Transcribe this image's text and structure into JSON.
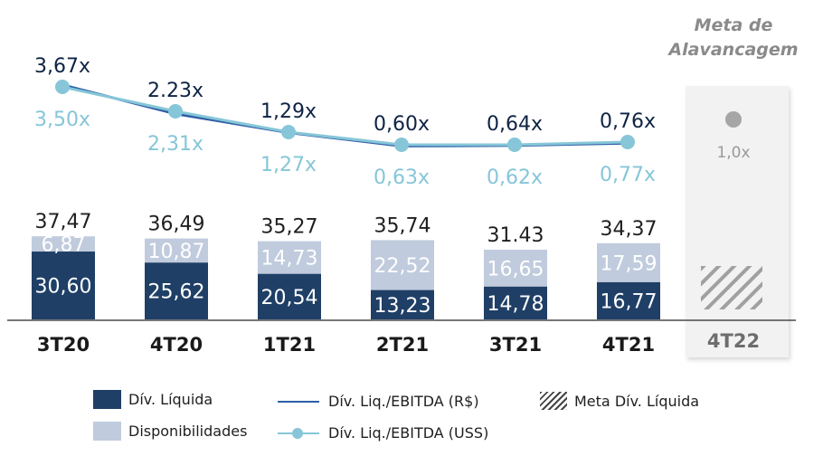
{
  "chart_data": {
    "type": "bar",
    "subtype": "stacked-bar-with-lines",
    "categories": [
      "3T20",
      "4T20",
      "1T21",
      "2T21",
      "3T21",
      "4T21"
    ],
    "series": [
      {
        "name": "Dív. Líquida",
        "kind": "bar",
        "values": [
          30.6,
          25.62,
          20.54,
          13.23,
          14.78,
          16.77
        ],
        "labels": [
          "30,60",
          "25,62",
          "20,54",
          "13,23",
          "14,78",
          "16,77"
        ],
        "color": "#1f3f66"
      },
      {
        "name": "Disponibilidades",
        "kind": "bar",
        "values": [
          6.87,
          10.87,
          14.73,
          22.52,
          16.65,
          17.59
        ],
        "labels": [
          "6,87",
          "10,87",
          "14,73",
          "22,52",
          "16,65",
          "17,59"
        ],
        "color": "#c0cbdd"
      },
      {
        "name": "Dív. Liq./EBITDA (R$)",
        "kind": "line",
        "values": [
          3.67,
          2.23,
          1.29,
          0.6,
          0.64,
          0.76
        ],
        "labels": [
          "3,67x",
          "2.23x",
          "1,29x",
          "0,60x",
          "0,64x",
          "0,76x"
        ],
        "color": "#2f5fa6"
      },
      {
        "name": "Dív. Liq./EBITDA (USS)",
        "kind": "line-marker",
        "values": [
          3.5,
          2.31,
          1.27,
          0.63,
          0.62,
          0.77
        ],
        "labels": [
          "3,50x",
          "2,31x",
          "1,27x",
          "0,63x",
          "0,62x",
          "0,77x"
        ],
        "color": "#86c6d8"
      }
    ],
    "totals": [
      37.47,
      36.49,
      35.27,
      35.74,
      31.43,
      34.37
    ],
    "total_labels": [
      "37,47",
      "36,49",
      "35,27",
      "35,74",
      "31.43",
      "34,37"
    ],
    "goal": {
      "title_line1": "Meta de",
      "title_line2": "Alavancagem",
      "category": "4T22",
      "leverage_value": 1.0,
      "leverage_label": "1,0x",
      "series_name": "Meta Dív. Líquida"
    },
    "title": "",
    "xlabel": "",
    "ylabel": "",
    "grid": false,
    "legend_position": "bottom"
  },
  "legend": {
    "items": [
      {
        "label": "Dív. Líquida",
        "swatch": "box",
        "color": "#1f3f66"
      },
      {
        "label": "Disponibilidades",
        "swatch": "box",
        "color": "#c0cbdd"
      },
      {
        "label": "Dív. Liq./EBITDA (R$)",
        "swatch": "line",
        "color": "#2f5fa6"
      },
      {
        "label": "Dív. Liq./EBITDA (USS)",
        "swatch": "line-marker",
        "color": "#86c6d8"
      },
      {
        "label": "Meta Dív. Líquida",
        "swatch": "hatch",
        "color": "#444444"
      }
    ]
  }
}
